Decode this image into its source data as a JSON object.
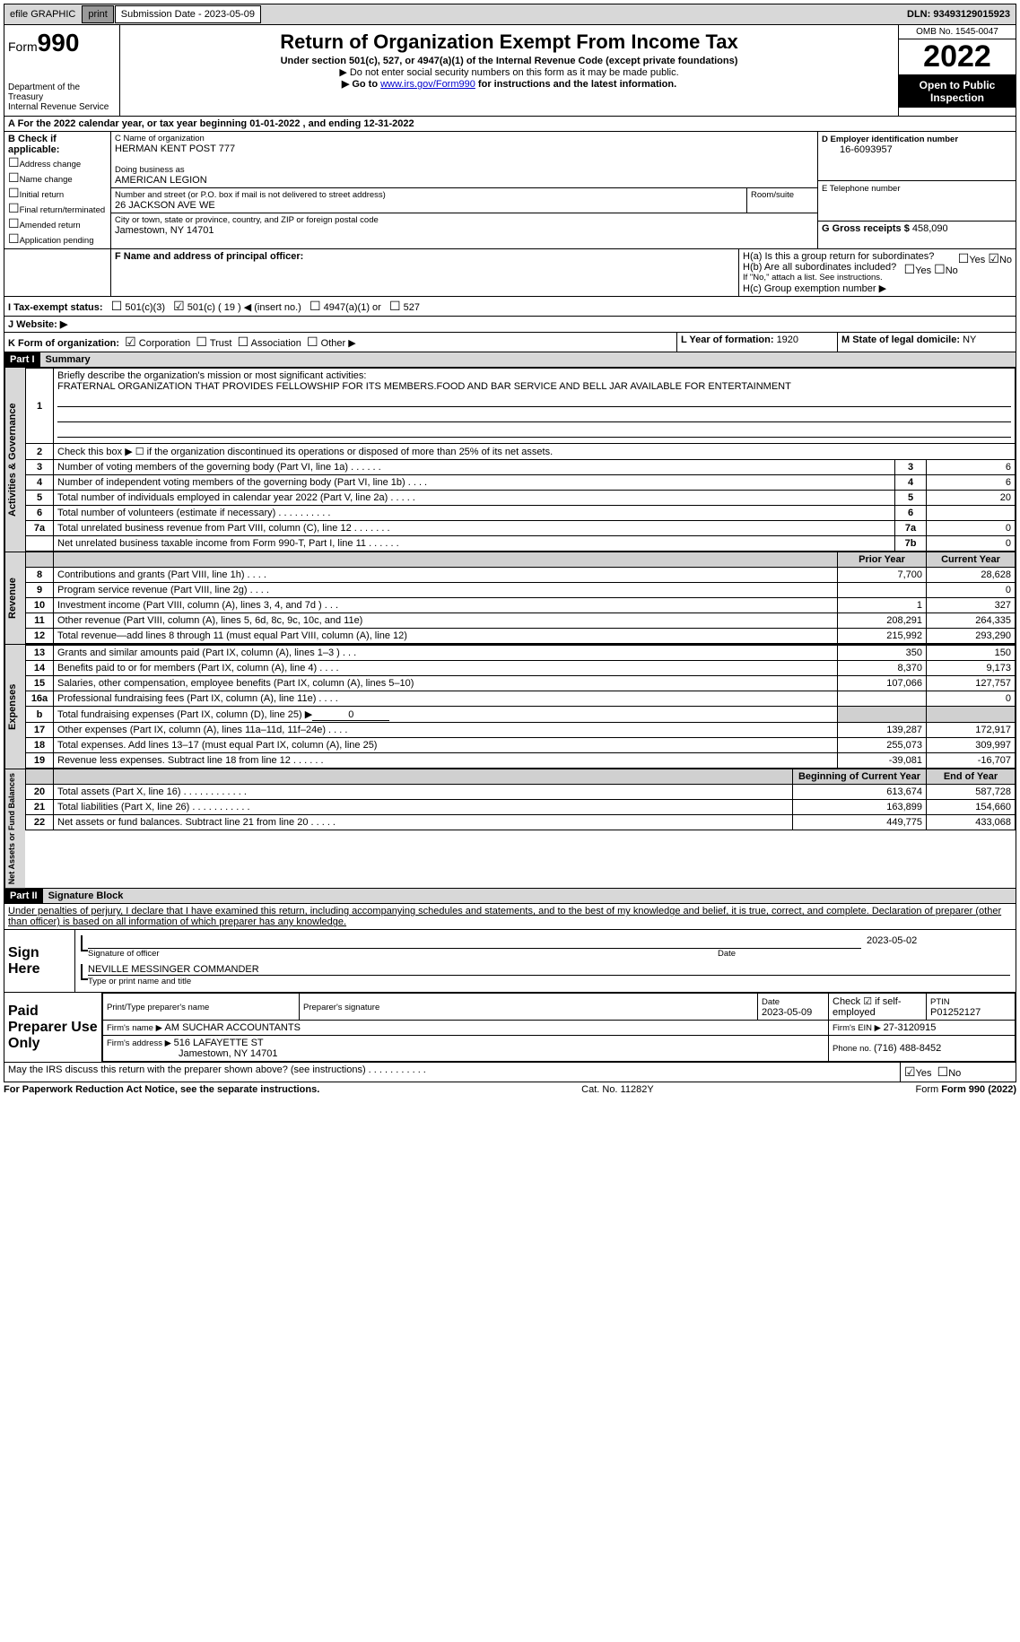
{
  "topbar": {
    "efile": "efile GRAPHIC",
    "print": "print",
    "sub_label": "Submission Date - 2023-05-09",
    "dln": "DLN: 93493129015923"
  },
  "header": {
    "form_word": "Form",
    "form_num": "990",
    "dept": "Department of the Treasury",
    "irs": "Internal Revenue Service",
    "title": "Return of Organization Exempt From Income Tax",
    "subtitle": "Under section 501(c), 527, or 4947(a)(1) of the Internal Revenue Code (except private foundations)",
    "note1": "▶ Do not enter social security numbers on this form as it may be made public.",
    "note2_pre": "▶ Go to ",
    "note2_link": "www.irs.gov/Form990",
    "note2_post": " for instructions and the latest information.",
    "omb": "OMB No. 1545-0047",
    "year": "2022",
    "open": "Open to Public Inspection"
  },
  "sectionA": {
    "calendar": "A For the 2022 calendar year, or tax year beginning 01-01-2022    , and ending 12-31-2022",
    "b_label": "B Check if applicable:",
    "b_opts": [
      "Address change",
      "Name change",
      "Initial return",
      "Final return/terminated",
      "Amended return",
      "Application pending"
    ],
    "c_label": "C Name of organization",
    "c_name": "HERMAN KENT POST 777",
    "dba_label": "Doing business as",
    "dba": "AMERICAN LEGION",
    "street_label": "Number and street (or P.O. box if mail is not delivered to street address)",
    "room_label": "Room/suite",
    "street": "26 JACKSON AVE WE",
    "city_label": "City or town, state or province, country, and ZIP or foreign postal code",
    "city": "Jamestown, NY  14701",
    "d_label": "D Employer identification number",
    "d_val": "16-6093957",
    "e_label": "E Telephone number",
    "g_label": "G Gross receipts $ ",
    "g_val": "458,090",
    "f_label": "F Name and address of principal officer:",
    "ha_label": "H(a)  Is this a group return for subordinates?",
    "hb_label": "H(b)  Are all subordinates included?",
    "hb_note": "If \"No,\" attach a list. See instructions.",
    "hc_label": "H(c)  Group exemption number ▶",
    "yes": "Yes",
    "no": "No",
    "i_label": "I   Tax-exempt status:",
    "i_501c3": "501(c)(3)",
    "i_501c": "501(c) ( 19 ) ◀ (insert no.)",
    "i_4947": "4947(a)(1) or",
    "i_527": "527",
    "j_label": "J   Website: ▶",
    "k_label": "K Form of organization:",
    "k_corp": "Corporation",
    "k_trust": "Trust",
    "k_assoc": "Association",
    "k_other": "Other ▶",
    "l_label": "L Year of formation: ",
    "l_val": "1920",
    "m_label": "M State of legal domicile: ",
    "m_val": "NY"
  },
  "part1": {
    "hdr": "Part I",
    "title": "Summary",
    "line1_label": "Briefly describe the organization's mission or most significant activities:",
    "line1_text": "FRATERNAL ORGANIZATION THAT PROVIDES FELLOWSHIP FOR ITS MEMBERS.FOOD AND BAR SERVICE AND BELL JAR AVAILABLE FOR ENTERTAINMENT",
    "line2": "Check this box ▶ ☐  if the organization discontinued its operations or disposed of more than 25% of its net assets.",
    "tab_gov": "Activities & Governance",
    "tab_rev": "Revenue",
    "tab_exp": "Expenses",
    "tab_net": "Net Assets or Fund Balances",
    "prior": "Prior Year",
    "current": "Current Year",
    "begin": "Beginning of Current Year",
    "end": "End of Year",
    "rows_gov": [
      {
        "n": "3",
        "t": "Number of voting members of the governing body (Part VI, line 1a)   .     .     .     .     .     .",
        "r": "3",
        "v": "6"
      },
      {
        "n": "4",
        "t": "Number of independent voting members of the governing body (Part VI, line 1b)   .     .     .     .",
        "r": "4",
        "v": "6"
      },
      {
        "n": "5",
        "t": "Total number of individuals employed in calendar year 2022 (Part V, line 2a)   .     .     .     .     .",
        "r": "5",
        "v": "20"
      },
      {
        "n": "6",
        "t": "Total number of volunteers (estimate if necessary)    .     .     .     .     .     .     .     .     .     .",
        "r": "6",
        "v": ""
      },
      {
        "n": "7a",
        "t": "Total unrelated business revenue from Part VIII, column (C), line 12   .     .     .     .     .     .     .",
        "r": "7a",
        "v": "0"
      },
      {
        "n": "",
        "t": "Net unrelated business taxable income from Form 990-T, Part I, line 11   .     .     .     .     .     .",
        "r": "7b",
        "v": "0"
      }
    ],
    "rows_rev": [
      {
        "n": "8",
        "t": "Contributions and grants (Part VIII, line 1h)    .     .     .     .",
        "p": "7,700",
        "c": "28,628"
      },
      {
        "n": "9",
        "t": "Program service revenue (Part VIII, line 2g)    .     .     .     .",
        "p": "",
        "c": "0"
      },
      {
        "n": "10",
        "t": "Investment income (Part VIII, column (A), lines 3, 4, and 7d )    .     .     .",
        "p": "1",
        "c": "327"
      },
      {
        "n": "11",
        "t": "Other revenue (Part VIII, column (A), lines 5, 6d, 8c, 9c, 10c, and 11e)",
        "p": "208,291",
        "c": "264,335"
      },
      {
        "n": "12",
        "t": "Total revenue—add lines 8 through 11 (must equal Part VIII, column (A), line 12)",
        "p": "215,992",
        "c": "293,290"
      }
    ],
    "rows_exp": [
      {
        "n": "13",
        "t": "Grants and similar amounts paid (Part IX, column (A), lines 1–3 )   .     .     .",
        "p": "350",
        "c": "150"
      },
      {
        "n": "14",
        "t": "Benefits paid to or for members (Part IX, column (A), line 4)   .     .     .     .",
        "p": "8,370",
        "c": "9,173"
      },
      {
        "n": "15",
        "t": "Salaries, other compensation, employee benefits (Part IX, column (A), lines 5–10)",
        "p": "107,066",
        "c": "127,757"
      },
      {
        "n": "16a",
        "t": "Professional fundraising fees (Part IX, column (A), line 11e)   .     .     .     .",
        "p": "",
        "c": "0"
      },
      {
        "n": "b",
        "t": "Total fundraising expenses (Part IX, column (D), line 25) ▶",
        "u": "0",
        "shade": true
      },
      {
        "n": "17",
        "t": "Other expenses (Part IX, column (A), lines 11a–11d, 11f–24e)   .     .     .     .",
        "p": "139,287",
        "c": "172,917"
      },
      {
        "n": "18",
        "t": "Total expenses. Add lines 13–17 (must equal Part IX, column (A), line 25)",
        "p": "255,073",
        "c": "309,997"
      },
      {
        "n": "19",
        "t": "Revenue less expenses. Subtract line 18 from line 12   .     .     .     .     .     .",
        "p": "-39,081",
        "c": "-16,707"
      }
    ],
    "rows_net": [
      {
        "n": "20",
        "t": "Total assets (Part X, line 16)   .     .     .     .     .     .     .     .     .     .     .     .",
        "p": "613,674",
        "c": "587,728"
      },
      {
        "n": "21",
        "t": "Total liabilities (Part X, line 26)   .     .     .     .     .     .     .     .     .     .     .",
        "p": "163,899",
        "c": "154,660"
      },
      {
        "n": "22",
        "t": "Net assets or fund balances. Subtract line 21 from line 20   .     .     .     .     .",
        "p": "449,775",
        "c": "433,068"
      }
    ]
  },
  "part2": {
    "hdr": "Part II",
    "title": "Signature Block",
    "decl": "Under penalties of perjury, I declare that I have examined this return, including accompanying schedules and statements, and to the best of my knowledge and belief, it is true, correct, and complete. Declaration of preparer (other than officer) is based on all information of which preparer has any knowledge.",
    "sign_here": "Sign Here",
    "sig_officer": "Signature of officer",
    "sig_date": "Date",
    "sig_date_val": "2023-05-02",
    "sig_name": "NEVILLE MESSINGER  COMMANDER",
    "sig_name_label": "Type or print name and title",
    "paid": "Paid Preparer Use Only",
    "prep_name_label": "Print/Type preparer's name",
    "prep_sig_label": "Preparer's signature",
    "prep_date_label": "Date",
    "prep_date": "2023-05-09",
    "prep_check": "Check ☑ if self-employed",
    "ptin_label": "PTIN",
    "ptin": "P01252127",
    "firm_name_label": "Firm's name    ▶ ",
    "firm_name": "AM SUCHAR ACCOUNTANTS",
    "firm_ein_label": "Firm's EIN ▶ ",
    "firm_ein": "27-3120915",
    "firm_addr_label": "Firm's address ▶ ",
    "firm_addr1": "516 LAFAYETTE ST",
    "firm_addr2": "Jamestown, NY  14701",
    "phone_label": "Phone no. ",
    "phone": "(716) 488-8452",
    "discuss": "May the IRS discuss this return with the preparer shown above? (see instructions)   .     .     .     .     .     .     .     .     .     .     ."
  },
  "footer": {
    "pra": "For Paperwork Reduction Act Notice, see the separate instructions.",
    "cat": "Cat. No. 11282Y",
    "form": "Form 990 (2022)"
  },
  "colors": {
    "gray": "#d8d8d8",
    "link": "#0000cc"
  }
}
